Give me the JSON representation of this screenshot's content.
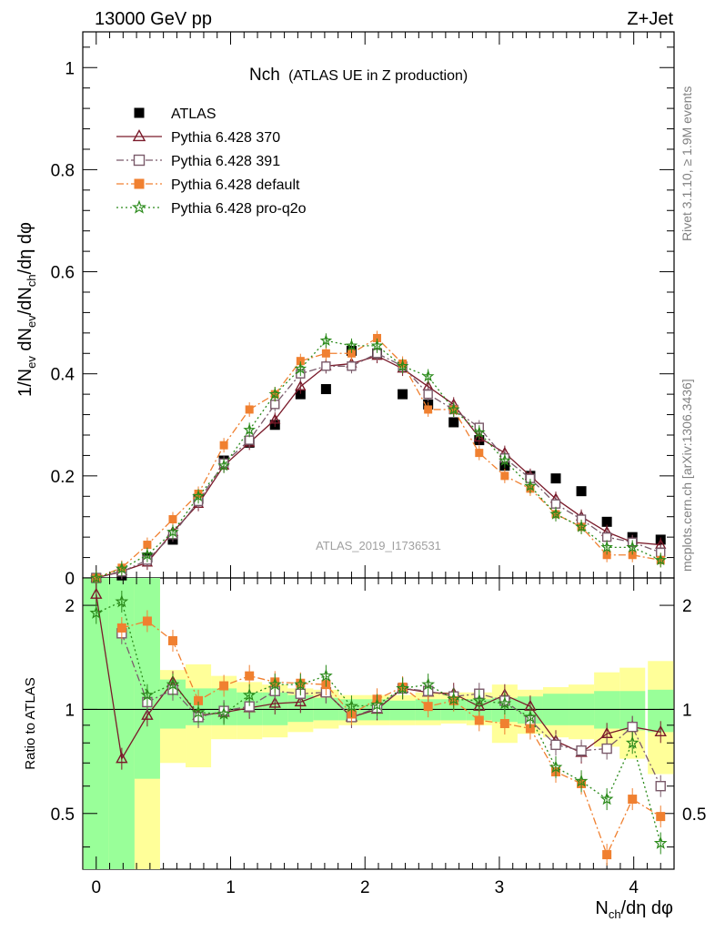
{
  "header": {
    "left": "13000 GeV pp",
    "right": "Z+Jet",
    "plot_title_main": "Nch",
    "plot_title_sub": "(ATLAS UE in Z production)",
    "watermark": "ATLAS_2019_I1736531",
    "side_top": "Rivet 3.1.10, ≥ 1.9M events",
    "side_bottom": "mcplots.cern.ch [arXiv:1306.3436]"
  },
  "axes": {
    "y_main_label": "1/N_ev dN_ev/dN_ch/dη dφ",
    "y_ratio_label": "Ratio to ATLAS",
    "x_label": "N_ch/dη dφ",
    "x_ticks": [
      "0",
      "1",
      "2",
      "3",
      "4"
    ],
    "y_main_ticks": [
      "0",
      "0.2",
      "0.4",
      "0.6",
      "0.8",
      "1"
    ],
    "y_ratio_ticks": [
      "0.5",
      "1",
      "2"
    ]
  },
  "chart_data": {
    "type": "scatter",
    "x": [
      0.0,
      0.19,
      0.38,
      0.57,
      0.76,
      0.95,
      1.14,
      1.33,
      1.52,
      1.71,
      1.9,
      2.09,
      2.28,
      2.47,
      2.66,
      2.85,
      3.04,
      3.23,
      3.42,
      3.61,
      3.8,
      3.99,
      4.2
    ],
    "xlim": [
      -0.1,
      4.3
    ],
    "main": {
      "ylim": [
        0,
        1.07
      ],
      "series": [
        {
          "name": "ATLAS",
          "color": "#000000",
          "marker": "square-filled",
          "values": [
            0.0,
            0.005,
            0.04,
            0.075,
            0.155,
            0.23,
            0.265,
            0.3,
            0.36,
            0.37,
            0.445,
            0.44,
            0.36,
            0.34,
            0.305,
            0.27,
            0.22,
            0.2,
            0.195,
            0.17,
            0.11,
            0.08,
            0.075
          ]
        },
        {
          "name": "Pythia 6.428 370",
          "color": "#7a1a2a",
          "marker": "triangle-open",
          "dash": "",
          "values": [
            0.0,
            0.013,
            0.03,
            0.09,
            0.145,
            0.22,
            0.265,
            0.31,
            0.375,
            0.415,
            0.42,
            0.435,
            0.41,
            0.375,
            0.34,
            0.275,
            0.245,
            0.2,
            0.155,
            0.12,
            0.09,
            0.07,
            0.065
          ]
        },
        {
          "name": "Pythia 6.428 391",
          "color": "#7a5a6a",
          "marker": "square-open",
          "dash": "8,3,2,3",
          "values": [
            0.0,
            0.012,
            0.035,
            0.085,
            0.15,
            0.225,
            0.27,
            0.34,
            0.4,
            0.415,
            0.415,
            0.44,
            0.415,
            0.36,
            0.33,
            0.295,
            0.235,
            0.195,
            0.145,
            0.115,
            0.08,
            0.07,
            0.05
          ]
        },
        {
          "name": "Pythia 6.428 default",
          "color": "#f08030",
          "marker": "square-filled",
          "dash": "8,3,2,3",
          "values": [
            0.0,
            0.02,
            0.065,
            0.115,
            0.165,
            0.26,
            0.33,
            0.36,
            0.425,
            0.44,
            0.44,
            0.47,
            0.42,
            0.33,
            0.33,
            0.245,
            0.2,
            0.175,
            0.125,
            0.1,
            0.045,
            0.045,
            0.035
          ]
        },
        {
          "name": "Pythia 6.428 pro-q2o",
          "color": "#2a8a1a",
          "marker": "star",
          "dash": "2,3",
          "values": [
            0.0,
            0.018,
            0.045,
            0.09,
            0.16,
            0.22,
            0.29,
            0.36,
            0.41,
            0.465,
            0.455,
            0.455,
            0.415,
            0.395,
            0.33,
            0.285,
            0.23,
            0.18,
            0.125,
            0.1,
            0.06,
            0.06,
            0.035
          ]
        }
      ]
    },
    "ratio": {
      "ylim": [
        0.345,
        2.4
      ],
      "scale": "log",
      "band_green": [
        [
          0.3,
          2.4
        ],
        [
          0.3,
          2.4
        ],
        [
          0.63,
          2.4
        ],
        [
          0.88,
          1.22
        ],
        [
          0.9,
          1.15
        ],
        [
          0.9,
          1.15
        ],
        [
          0.9,
          1.12
        ],
        [
          0.9,
          1.12
        ],
        [
          0.92,
          1.1
        ],
        [
          0.93,
          1.08
        ],
        [
          0.93,
          1.07
        ],
        [
          0.93,
          1.07
        ],
        [
          0.93,
          1.06
        ],
        [
          0.93,
          1.07
        ],
        [
          0.93,
          1.07
        ],
        [
          0.93,
          1.07
        ],
        [
          0.92,
          1.08
        ],
        [
          0.91,
          1.09
        ],
        [
          0.9,
          1.11
        ],
        [
          0.9,
          1.11
        ],
        [
          0.88,
          1.13
        ],
        [
          0.87,
          1.13
        ],
        [
          0.86,
          1.14
        ]
      ],
      "band_yellow": [
        [
          0.3,
          2.4
        ],
        [
          0.3,
          2.4
        ],
        [
          0.3,
          2.4
        ],
        [
          0.7,
          1.3
        ],
        [
          0.68,
          1.35
        ],
        [
          0.82,
          1.25
        ],
        [
          0.82,
          1.2
        ],
        [
          0.83,
          1.18
        ],
        [
          0.86,
          1.15
        ],
        [
          0.88,
          1.14
        ],
        [
          0.9,
          1.1
        ],
        [
          0.9,
          1.1
        ],
        [
          0.9,
          1.1
        ],
        [
          0.9,
          1.12
        ],
        [
          0.91,
          1.12
        ],
        [
          0.9,
          1.12
        ],
        [
          0.8,
          1.18
        ],
        [
          0.85,
          1.14
        ],
        [
          0.83,
          1.16
        ],
        [
          0.82,
          1.18
        ],
        [
          0.78,
          1.28
        ],
        [
          0.72,
          1.32
        ],
        [
          0.65,
          1.38
        ]
      ],
      "series": [
        {
          "name": "Pythia 6.428 370",
          "values": [
            2.15,
            0.72,
            0.96,
            1.2,
            0.96,
            0.98,
            1.01,
            1.04,
            1.05,
            1.12,
            0.95,
            1.0,
            1.15,
            1.12,
            1.11,
            1.02,
            1.1,
            1.02,
            0.81,
            0.75,
            0.85,
            0.89,
            0.86
          ]
        },
        {
          "name": "Pythia 6.428 391",
          "values": [
            0.0,
            1.66,
            1.05,
            1.14,
            0.95,
            0.99,
            1.02,
            1.13,
            1.11,
            1.12,
            0.95,
            1.01,
            1.15,
            1.13,
            1.09,
            1.11,
            1.06,
            0.93,
            0.79,
            0.76,
            0.77,
            0.89,
            0.6
          ]
        },
        {
          "name": "Pythia 6.428 default",
          "values": [
            0.0,
            1.72,
            1.8,
            1.58,
            1.06,
            1.17,
            1.25,
            1.2,
            1.19,
            1.18,
            0.97,
            1.07,
            1.16,
            1.02,
            1.06,
            0.93,
            0.91,
            0.88,
            0.66,
            0.61,
            0.38,
            0.55,
            0.49
          ]
        },
        {
          "name": "Pythia 6.428 pro-q2o",
          "values": [
            1.9,
            2.05,
            1.1,
            1.18,
            0.98,
            0.97,
            1.1,
            1.18,
            1.18,
            1.25,
            1.02,
            1.03,
            1.15,
            1.18,
            1.07,
            1.06,
            1.04,
            0.95,
            0.68,
            0.62,
            0.55,
            0.8,
            0.41
          ]
        }
      ]
    }
  }
}
